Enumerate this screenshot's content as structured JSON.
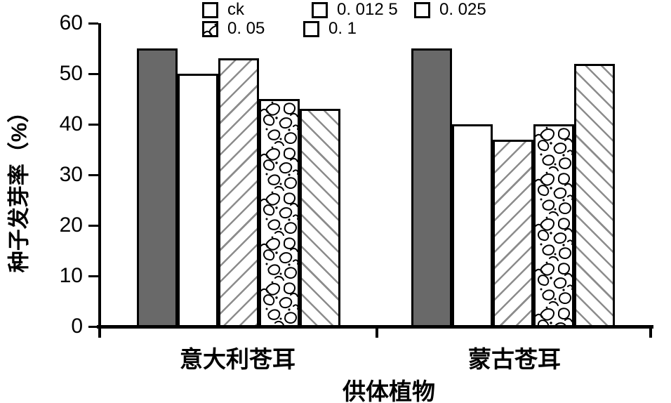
{
  "colors": {
    "background": "#ffffff",
    "ink": "#000000",
    "bar_gray": "#696969",
    "hatch_gray": "#8c8c8c"
  },
  "chart_data": {
    "type": "bar",
    "title": "",
    "xlabel": "供体植物",
    "ylabel": "种子发芽率（%）",
    "ylim": [
      0,
      60
    ],
    "yticks": [
      0,
      10,
      20,
      30,
      40,
      50,
      60
    ],
    "grid": false,
    "legend_position": "top",
    "categories": [
      "意大利苍耳",
      "蒙古苍耳"
    ],
    "series": [
      {
        "name": "ck",
        "pattern": "solid",
        "values": [
          55,
          55
        ]
      },
      {
        "name": "0. 012 5",
        "pattern": "plain",
        "values": [
          50,
          40
        ]
      },
      {
        "name": "0. 025",
        "pattern": "hatch-forward",
        "values": [
          53,
          37
        ]
      },
      {
        "name": "0. 05",
        "pattern": "vermiculate",
        "values": [
          45,
          40
        ]
      },
      {
        "name": "0. 1",
        "pattern": "hatch-back",
        "values": [
          43,
          52
        ]
      }
    ]
  }
}
